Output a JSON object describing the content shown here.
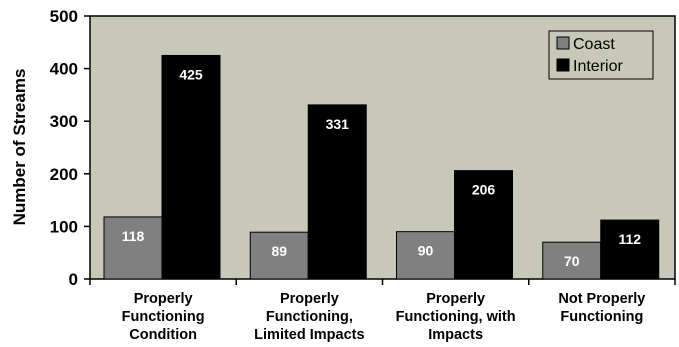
{
  "chart_data": {
    "type": "bar",
    "title": "",
    "xlabel": "",
    "ylabel": "Number of Streams",
    "ylim": [
      0,
      500
    ],
    "yticks": [
      0,
      100,
      200,
      300,
      400,
      500
    ],
    "grid": false,
    "legend_position": "top-right",
    "plot_background": "#c8c8b8",
    "categories": [
      [
        "Properly",
        "Functioning",
        "Condition"
      ],
      [
        "Properly",
        "Functioning,",
        "Limited Impacts"
      ],
      [
        "Properly",
        "Functioning, with",
        "Impacts"
      ],
      [
        "Not Properly",
        "Functioning"
      ]
    ],
    "series": [
      {
        "name": "Coast",
        "color": "#808080",
        "values": [
          118,
          89,
          90,
          70
        ]
      },
      {
        "name": "Interior",
        "color": "#000000",
        "values": [
          425,
          331,
          206,
          112
        ]
      }
    ]
  }
}
